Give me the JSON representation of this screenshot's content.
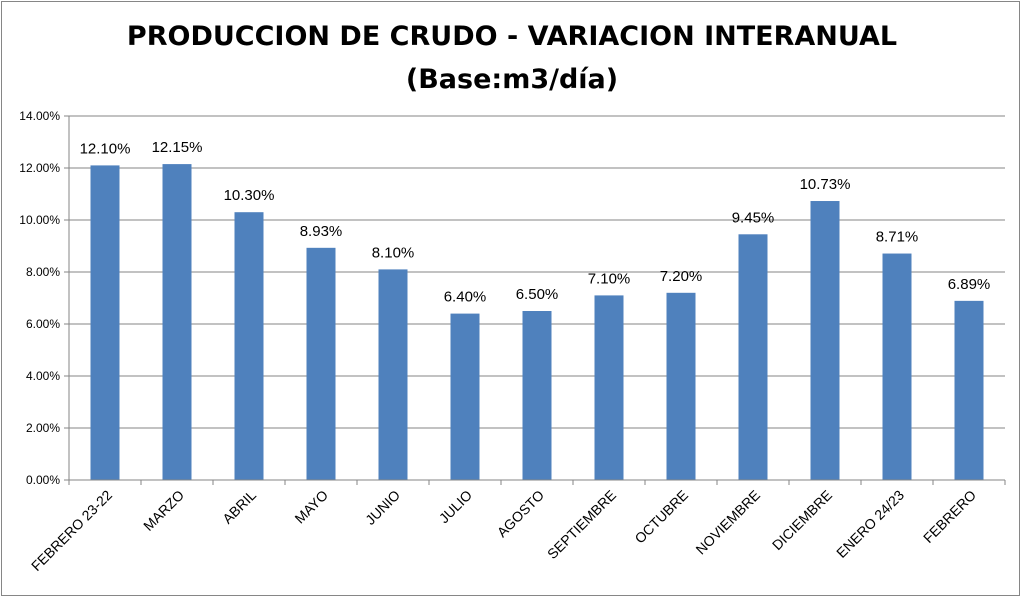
{
  "chart_data": {
    "type": "bar",
    "title": [
      "PRODUCCION DE CRUDO - VARIACION INTERANUAL",
      "(Base:m3/día)"
    ],
    "xlabel": "",
    "ylabel": "",
    "ylim": [
      0,
      14
    ],
    "yticks": [
      0,
      2,
      4,
      6,
      8,
      10,
      12,
      14
    ],
    "ytick_labels": [
      "0.00%",
      "2.00%",
      "4.00%",
      "6.00%",
      "8.00%",
      "10.00%",
      "12.00%",
      "14.00%"
    ],
    "grid": true,
    "categories": [
      "FEBRERO 23-22",
      "MARZO",
      "ABRIL",
      "MAYO",
      "JUNIO",
      "JULIO",
      "AGOSTO",
      "SEPTIEMBRE",
      "OCTUBRE",
      "NOVIEMBRE",
      "DICIEMBRE",
      "ENERO 24/23",
      "FEBRERO"
    ],
    "values": [
      12.1,
      12.15,
      10.3,
      8.93,
      8.1,
      6.4,
      6.5,
      7.1,
      7.2,
      9.45,
      10.73,
      8.71,
      6.89
    ],
    "data_labels": [
      "12.10%",
      "12.15%",
      "10.30%",
      "8.93%",
      "8.10%",
      "6.40%",
      "6.50%",
      "7.10%",
      "7.20%",
      "9.45%",
      "10.73%",
      "8.71%",
      "6.89%"
    ],
    "bar_color": "#4F81BD",
    "grid_color": "#868686"
  }
}
